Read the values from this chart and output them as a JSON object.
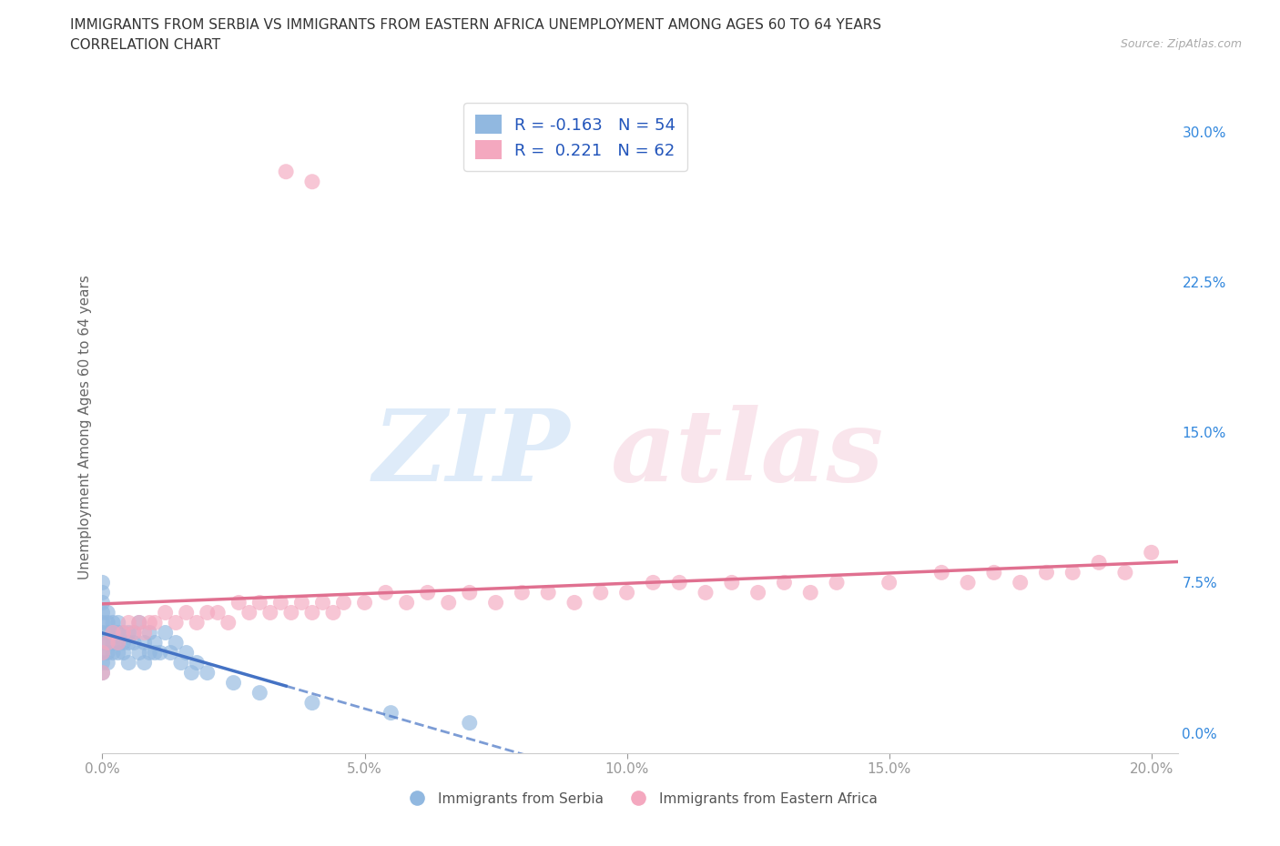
{
  "title_line1": "IMMIGRANTS FROM SERBIA VS IMMIGRANTS FROM EASTERN AFRICA UNEMPLOYMENT AMONG AGES 60 TO 64 YEARS",
  "title_line2": "CORRELATION CHART",
  "source": "Source: ZipAtlas.com",
  "ylabel": "Unemployment Among Ages 60 to 64 years",
  "xlim": [
    0.0,
    0.205
  ],
  "ylim": [
    -0.01,
    0.315
  ],
  "xticks": [
    0.0,
    0.05,
    0.1,
    0.15,
    0.2
  ],
  "yticks": [
    0.0,
    0.075,
    0.15,
    0.225,
    0.3
  ],
  "xticklabels": [
    "0.0%",
    "5.0%",
    "10.0%",
    "15.0%",
    "20.0%"
  ],
  "yticklabels": [
    "0.0%",
    "7.5%",
    "15.0%",
    "22.5%",
    "30.0%"
  ],
  "serbia_R": -0.163,
  "serbia_N": 54,
  "eastafrica_R": 0.221,
  "eastafrica_N": 62,
  "serbia_color": "#91b8e0",
  "eastafrica_color": "#f4a8bf",
  "serbia_line_color": "#4472c4",
  "eastafrica_line_color": "#e07090",
  "legend_label_serbia": "Immigrants from Serbia",
  "legend_label_eastafrica": "Immigrants from Eastern Africa",
  "source_text": "Source: ZipAtlas.com",
  "serbia_x": [
    0.0,
    0.0,
    0.0,
    0.0,
    0.0,
    0.0,
    0.0,
    0.0,
    0.0,
    0.0,
    0.001,
    0.001,
    0.001,
    0.001,
    0.001,
    0.001,
    0.002,
    0.002,
    0.002,
    0.002,
    0.003,
    0.003,
    0.003,
    0.003,
    0.004,
    0.004,
    0.004,
    0.005,
    0.005,
    0.005,
    0.006,
    0.006,
    0.007,
    0.007,
    0.008,
    0.008,
    0.009,
    0.009,
    0.01,
    0.01,
    0.011,
    0.012,
    0.013,
    0.014,
    0.015,
    0.016,
    0.017,
    0.018,
    0.02,
    0.025,
    0.03,
    0.04,
    0.055,
    0.07
  ],
  "serbia_y": [
    0.05,
    0.04,
    0.035,
    0.06,
    0.045,
    0.055,
    0.03,
    0.065,
    0.07,
    0.075,
    0.045,
    0.055,
    0.05,
    0.06,
    0.04,
    0.035,
    0.05,
    0.045,
    0.055,
    0.04,
    0.05,
    0.045,
    0.04,
    0.055,
    0.045,
    0.05,
    0.04,
    0.045,
    0.05,
    0.035,
    0.045,
    0.05,
    0.04,
    0.055,
    0.045,
    0.035,
    0.04,
    0.05,
    0.04,
    0.045,
    0.04,
    0.05,
    0.04,
    0.045,
    0.035,
    0.04,
    0.03,
    0.035,
    0.03,
    0.025,
    0.02,
    0.015,
    0.01,
    0.005
  ],
  "eastafrica_x": [
    0.0,
    0.0,
    0.001,
    0.002,
    0.003,
    0.004,
    0.005,
    0.006,
    0.007,
    0.008,
    0.009,
    0.01,
    0.012,
    0.014,
    0.016,
    0.018,
    0.02,
    0.022,
    0.024,
    0.026,
    0.028,
    0.03,
    0.032,
    0.034,
    0.036,
    0.038,
    0.04,
    0.042,
    0.044,
    0.046,
    0.05,
    0.054,
    0.058,
    0.062,
    0.066,
    0.07,
    0.075,
    0.08,
    0.085,
    0.09,
    0.095,
    0.1,
    0.105,
    0.11,
    0.115,
    0.12,
    0.125,
    0.13,
    0.135,
    0.14,
    0.15,
    0.16,
    0.165,
    0.17,
    0.175,
    0.18,
    0.185,
    0.19,
    0.195,
    0.2,
    0.035,
    0.04
  ],
  "eastafrica_y": [
    0.03,
    0.04,
    0.045,
    0.05,
    0.045,
    0.05,
    0.055,
    0.05,
    0.055,
    0.05,
    0.055,
    0.055,
    0.06,
    0.055,
    0.06,
    0.055,
    0.06,
    0.06,
    0.055,
    0.065,
    0.06,
    0.065,
    0.06,
    0.065,
    0.06,
    0.065,
    0.06,
    0.065,
    0.06,
    0.065,
    0.065,
    0.07,
    0.065,
    0.07,
    0.065,
    0.07,
    0.065,
    0.07,
    0.07,
    0.065,
    0.07,
    0.07,
    0.075,
    0.075,
    0.07,
    0.075,
    0.07,
    0.075,
    0.07,
    0.075,
    0.075,
    0.08,
    0.075,
    0.08,
    0.075,
    0.08,
    0.08,
    0.085,
    0.08,
    0.09,
    0.28,
    0.275
  ]
}
